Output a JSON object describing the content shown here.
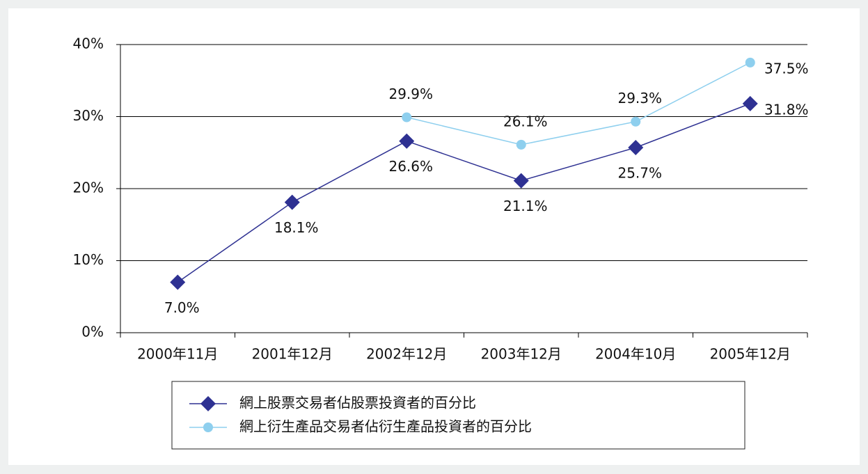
{
  "chart_data": {
    "type": "line",
    "categories": [
      "2000年11月",
      "2001年12月",
      "2002年12月",
      "2003年12月",
      "2004年10月",
      "2005年12月"
    ],
    "series": [
      {
        "name": "網上股票交易者佔股票投資者的百分比",
        "color": "#2e3192",
        "marker": "diamond",
        "values": [
          7.0,
          18.1,
          26.6,
          21.1,
          25.7,
          31.8
        ],
        "value_labels": [
          "7.0%",
          "18.1%",
          "26.6%",
          "21.1%",
          "25.7%",
          "31.8%"
        ]
      },
      {
        "name": "網上衍生產品交易者佔衍生產品投資者的百分比",
        "color": "#8ecfee",
        "marker": "circle",
        "values": [
          null,
          null,
          29.9,
          26.1,
          29.3,
          37.5
        ],
        "value_labels": [
          null,
          null,
          "29.9%",
          "26.1%",
          "29.3%",
          "37.5%"
        ]
      }
    ],
    "ylim": [
      0,
      40
    ],
    "yticks": [
      {
        "value": 0,
        "label": "0%"
      },
      {
        "value": 10,
        "label": "10%"
      },
      {
        "value": 20,
        "label": "20%"
      },
      {
        "value": 30,
        "label": "30%"
      },
      {
        "value": 40,
        "label": "40%"
      }
    ],
    "grid": true,
    "legend": "bottom"
  }
}
